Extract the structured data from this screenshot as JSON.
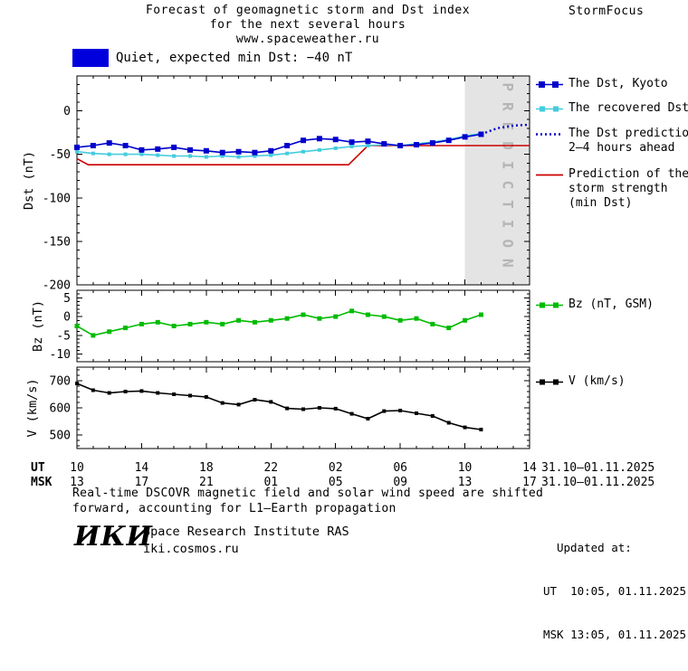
{
  "header": {
    "title_line1": "Forecast of geomagnetic storm and Dst index",
    "title_line2": "for the next several hours",
    "site": "www.spaceweather.ru",
    "brand": "StormFocus"
  },
  "status": {
    "label": "Quiet, expected min Dst: −40 nT"
  },
  "legend": {
    "dst_kyoto": "The Dst, Kyoto",
    "recovered": "The recovered Dst",
    "prediction_line1": "The Dst prediction",
    "prediction_line2": "2–4 hours ahead",
    "storm_line1": "Prediction of the",
    "storm_line2": "storm strength",
    "storm_line3": "(min Dst)",
    "bz": "Bz (nT, GSM)",
    "v": "V (km/s)"
  },
  "colors": {
    "dst_kyoto": "#0000cc",
    "recovered_dst": "#44ccdd",
    "dst_prediction": "#0000cc",
    "storm_prediction": "#cc0000",
    "bz": "#00bb00",
    "v": "#000000",
    "prediction_band_fill": "#e4e4e4",
    "prediction_band_text": "#b5b5b5",
    "status_box": "#0000dd"
  },
  "xaxis": {
    "t_max": 28,
    "ticks_t": [
      0,
      4,
      8,
      12,
      16,
      20,
      24,
      28
    ],
    "ut_labels": [
      "10",
      "14",
      "18",
      "22",
      "02",
      "06",
      "10",
      "14"
    ],
    "msk_labels": [
      "13",
      "17",
      "21",
      "01",
      "05",
      "09",
      "13",
      "17"
    ],
    "ut_row_label": "UT",
    "msk_row_label": "MSK",
    "ut_date_range": "31.10–01.11.2025",
    "msk_date_range": "31.10–01.11.2025"
  },
  "chart_data": [
    {
      "name": "dst",
      "type": "line",
      "ylabel": "Dst (nT)",
      "ylim": [
        -200,
        40
      ],
      "yticks": [
        0,
        -50,
        -100,
        -150,
        -200
      ],
      "yminor_step": 10,
      "x": [
        0,
        1,
        2,
        3,
        4,
        5,
        6,
        7,
        8,
        9,
        10,
        11,
        12,
        13,
        14,
        15,
        16,
        17,
        18,
        19,
        20,
        21,
        22,
        23,
        24,
        25
      ],
      "prediction_band": {
        "label": "PREDICTION",
        "t_start": 24,
        "t_end": 28,
        "fill": "#e4e4e4",
        "text_color": "#b5b5b5"
      },
      "series": [
        {
          "id": "dst-kyoto",
          "name": "The Dst, Kyoto",
          "color": "#0000cc",
          "marker": "square",
          "marker_size": 6,
          "values": [
            -42,
            -40,
            -37,
            -40,
            -45,
            -44,
            -42,
            -45,
            -46,
            -48,
            -47,
            -48,
            -46,
            -40,
            -34,
            -32,
            -33,
            -36,
            -35,
            -38,
            -40,
            -39,
            -37,
            -34,
            -30,
            -27
          ]
        },
        {
          "id": "recovered-dst",
          "name": "The recovered Dst",
          "color": "#44ccdd",
          "marker": "square",
          "marker_size": 4,
          "values": [
            -47,
            -49,
            -50,
            -50,
            -50,
            -51,
            -52,
            -52,
            -53,
            -52,
            -53,
            -52,
            -51,
            -49,
            -47,
            -45,
            -43,
            -41,
            -40,
            -39,
            -40,
            -38,
            -36,
            -33,
            -29,
            -26
          ]
        },
        {
          "id": "dst-prediction",
          "name": "The Dst prediction 2–4 hours ahead",
          "color": "#0000cc",
          "style": "dotted",
          "x": [
            25,
            26,
            27,
            28
          ],
          "values": [
            -27,
            -20,
            -17,
            -16
          ]
        },
        {
          "id": "storm-min-dst",
          "name": "Prediction of the storm strength (min Dst)",
          "color": "#cc0000",
          "x": [
            0,
            0.7,
            16.8,
            18,
            28
          ],
          "values": [
            -55,
            -62,
            -62,
            -40,
            -40
          ]
        }
      ]
    },
    {
      "name": "bz",
      "type": "line",
      "ylabel": "Bz (nT)",
      "ylim": [
        -12,
        7
      ],
      "yticks": [
        5,
        0,
        -5,
        -10
      ],
      "yminor_step": 1,
      "x": [
        0,
        1,
        2,
        3,
        4,
        5,
        6,
        7,
        8,
        9,
        10,
        11,
        12,
        13,
        14,
        15,
        16,
        17,
        18,
        19,
        20,
        21,
        22,
        23,
        24,
        25
      ],
      "series": [
        {
          "id": "bz-gsm",
          "name": "Bz (nT, GSM)",
          "color": "#00bb00",
          "marker": "square",
          "marker_size": 5,
          "values": [
            -2.5,
            -5,
            -4,
            -3,
            -2,
            -1.5,
            -2.5,
            -2,
            -1.5,
            -2,
            -1,
            -1.5,
            -1,
            -0.5,
            0.5,
            -0.5,
            0,
            1.5,
            0.5,
            0,
            -1,
            -0.5,
            -2,
            -3,
            -1,
            0.5
          ]
        }
      ]
    },
    {
      "name": "v",
      "type": "line",
      "ylabel": "V (km/s)",
      "ylim": [
        450,
        750
      ],
      "yticks": [
        700,
        600,
        500
      ],
      "yminor_step": 20,
      "x": [
        0,
        1,
        2,
        3,
        4,
        5,
        6,
        7,
        8,
        9,
        10,
        11,
        12,
        13,
        14,
        15,
        16,
        17,
        18,
        19,
        20,
        21,
        22,
        23,
        24,
        25
      ],
      "series": [
        {
          "id": "solar-wind-speed",
          "name": "V (km/s)",
          "color": "#000000",
          "marker": "square",
          "marker_size": 4,
          "values": [
            690,
            665,
            655,
            660,
            662,
            655,
            650,
            645,
            640,
            618,
            612,
            630,
            622,
            598,
            595,
            600,
            597,
            578,
            560,
            588,
            590,
            580,
            570,
            545,
            528,
            520
          ]
        }
      ]
    }
  ],
  "footnote": {
    "line1": "Real-time DSCOVR magnetic field and solar wind speed are shifted",
    "line2": "forward, accounting for L1–Earth propagation"
  },
  "updated": {
    "label": "Updated at:",
    "ut": "UT  10:05, 01.11.2025",
    "msk": "MSK 13:05, 01.11.2025"
  },
  "footer": {
    "logo": "ИКИ",
    "org": "Space Research Institute RAS",
    "site": "iki.cosmos.ru"
  }
}
